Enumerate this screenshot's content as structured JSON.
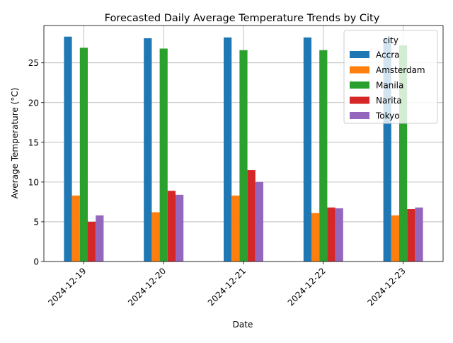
{
  "chart_data": {
    "type": "bar",
    "title": "Forecasted Daily Average Temperature Trends by City",
    "xlabel": "Date",
    "ylabel": "Average Temperature (°C)",
    "ylim": [
      0,
      29.7
    ],
    "yticks": [
      0,
      5,
      10,
      15,
      20,
      25
    ],
    "grid": true,
    "legend": {
      "title": "city",
      "placement": "top-right"
    },
    "categories": [
      "2024-12-19",
      "2024-12-20",
      "2024-12-21",
      "2024-12-22",
      "2024-12-23"
    ],
    "series": [
      {
        "name": "Accra",
        "color": "#1f77b4",
        "values": [
          28.3,
          28.1,
          28.2,
          28.2,
          28.1
        ]
      },
      {
        "name": "Amsterdam",
        "color": "#ff7f0e",
        "values": [
          8.3,
          6.2,
          8.3,
          6.1,
          5.8
        ]
      },
      {
        "name": "Manila",
        "color": "#2ca02c",
        "values": [
          26.9,
          26.8,
          26.6,
          26.6,
          27.2
        ]
      },
      {
        "name": "Narita",
        "color": "#d62728",
        "values": [
          5.0,
          8.9,
          11.5,
          6.8,
          6.6
        ]
      },
      {
        "name": "Tokyo",
        "color": "#9467bd",
        "values": [
          5.8,
          8.4,
          10.0,
          6.7,
          6.8
        ]
      }
    ]
  }
}
